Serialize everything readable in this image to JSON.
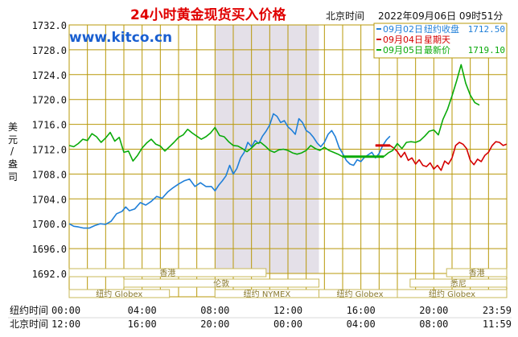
{
  "chart_data": {
    "type": "line",
    "title": "24小时黄金现货买入价格",
    "timezone_label": "北京时间",
    "timestamp": "2022年09月06日 09时51分",
    "watermark": "www.kitco.cn",
    "ylabel_chars": [
      "美",
      "元",
      "/",
      "盎",
      "司"
    ],
    "ylim": [
      1692,
      1732
    ],
    "yticks": [
      "1732.0",
      "1728.0",
      "1724.0",
      "1720.0",
      "1716.0",
      "1712.0",
      "1708.0",
      "1704.0",
      "1700.0",
      "1696.0",
      "1692.0"
    ],
    "xlim": [
      0,
      24
    ],
    "x_rows": [
      {
        "label": "纽约时间",
        "ticks": [
          "00:00",
          "04:00",
          "08:00",
          "12:00",
          "16:00",
          "20:00",
          "23:59"
        ]
      },
      {
        "label": "北京时间",
        "ticks": [
          "12:00",
          "16:00",
          "20:00",
          "00:00",
          "04:00",
          "08:00",
          "11:59"
        ]
      }
    ],
    "legend": [
      {
        "date": "09月02日",
        "tag": "纽约收盘",
        "value": "1712.50",
        "color": "#1f7fd8"
      },
      {
        "date": "09月04日",
        "tag": "星期天",
        "value": "",
        "color": "#d40000"
      },
      {
        "date": "09月05日",
        "tag": "最新价",
        "value": "1719.10",
        "color": "#0aaa0a"
      }
    ],
    "sessions": [
      {
        "label": "香港",
        "row": 0,
        "x_start": 0,
        "x_end": 10.8
      },
      {
        "label": "伦敦",
        "row": 1,
        "x_start": 3.0,
        "x_end": 13.7
      },
      {
        "label": "纽约 NYMEX",
        "row": 2,
        "x_start": 8.0,
        "x_end": 13.7
      },
      {
        "label": "纽约 Globex",
        "row": 2,
        "x_start": 0,
        "x_end": 5.5
      },
      {
        "label": "纽约 Globex",
        "row": 2,
        "x_start": 13.7,
        "x_end": 18.2
      },
      {
        "label": "香港",
        "row": 0,
        "x_start": 20.7,
        "x_end": 24
      },
      {
        "label": "悉尼",
        "row": 1,
        "x_start": 18.7,
        "x_end": 24
      },
      {
        "label": "纽约 Globex",
        "row": 2,
        "x_start": 18.0,
        "x_end": 24
      }
    ],
    "series": [
      {
        "name": "09月02日",
        "color": "#1f7fd8",
        "x": [
          0,
          0.25,
          0.5,
          0.8,
          1.1,
          1.4,
          1.7,
          2.0,
          2.3,
          2.6,
          2.9,
          3.1,
          3.3,
          3.6,
          3.9,
          4.2,
          4.5,
          4.8,
          5.1,
          5.4,
          5.7,
          6.0,
          6.3,
          6.6,
          6.9,
          7.2,
          7.5,
          7.8,
          8.0,
          8.2,
          8.4,
          8.6,
          8.8,
          9.0,
          9.2,
          9.4,
          9.6,
          9.8,
          10.0,
          10.2,
          10.4,
          10.6,
          10.8,
          11.0,
          11.2,
          11.4,
          11.6,
          11.8,
          12.0,
          12.2,
          12.4,
          12.6,
          12.8,
          13.0,
          13.2,
          13.4,
          13.6,
          13.8,
          14.0,
          14.2,
          14.4,
          14.6,
          14.8,
          15.0,
          15.2,
          15.4,
          15.6,
          15.8,
          16.0,
          16.2,
          16.4,
          16.6,
          16.8,
          17.0,
          17.2,
          17.4,
          17.6
        ],
        "y": [
          1700.0,
          1699.6,
          1699.5,
          1699.3,
          1699.3,
          1699.7,
          1700.0,
          1699.9,
          1700.4,
          1701.6,
          1702.0,
          1702.7,
          1702.1,
          1702.4,
          1703.4,
          1703.0,
          1703.6,
          1704.4,
          1704.1,
          1705.1,
          1705.8,
          1706.4,
          1706.9,
          1707.2,
          1706.0,
          1706.6,
          1706.0,
          1706.0,
          1705.3,
          1706.2,
          1706.9,
          1707.7,
          1709.4,
          1708.0,
          1708.9,
          1710.6,
          1711.5,
          1713.1,
          1712.4,
          1713.4,
          1712.9,
          1714.1,
          1714.9,
          1715.9,
          1717.7,
          1717.3,
          1716.3,
          1716.6,
          1715.6,
          1715.1,
          1714.4,
          1716.9,
          1716.3,
          1715.0,
          1714.6,
          1713.9,
          1713.0,
          1712.4,
          1713.1,
          1714.4,
          1715.0,
          1714.0,
          1712.3,
          1711.3,
          1710.2,
          1709.6,
          1709.4,
          1710.3,
          1710.0,
          1710.7,
          1711.1,
          1711.5,
          1710.6,
          1711.3,
          1712.6,
          1713.5,
          1714.1
        ]
      },
      {
        "name": "09月04日",
        "color": "#d40000",
        "x": [
          16.8,
          17.0,
          17.2,
          17.4,
          17.6,
          17.8,
          18.0,
          18.2,
          18.4,
          18.6,
          18.8,
          19.0,
          19.2,
          19.4,
          19.6,
          19.8,
          20.0,
          20.2,
          20.4,
          20.6,
          20.8,
          21.0,
          21.2,
          21.4,
          21.6,
          21.8,
          22.0,
          22.2,
          22.4,
          22.6,
          22.8,
          23.0,
          23.2,
          23.4,
          23.6,
          23.8,
          23.99
        ],
        "y": [
          1712.6,
          1712.6,
          1712.6,
          1712.6,
          1712.6,
          1712.2,
          1711.6,
          1710.7,
          1711.5,
          1710.2,
          1710.6,
          1709.6,
          1710.3,
          1709.4,
          1709.2,
          1709.8,
          1708.8,
          1709.4,
          1708.6,
          1710.1,
          1709.6,
          1710.6,
          1712.6,
          1713.1,
          1712.8,
          1712.1,
          1710.2,
          1709.5,
          1710.4,
          1710.0,
          1711.0,
          1711.5,
          1712.6,
          1713.2,
          1713.1,
          1712.6,
          1712.8
        ]
      },
      {
        "name": "09月05日",
        "color": "#0aaa0a",
        "x": [
          0,
          0.25,
          0.5,
          0.75,
          1.0,
          1.25,
          1.5,
          1.75,
          2.0,
          2.25,
          2.5,
          2.75,
          3.0,
          3.25,
          3.5,
          3.75,
          4.0,
          4.25,
          4.5,
          4.75,
          5.0,
          5.25,
          5.5,
          5.75,
          6.0,
          6.25,
          6.5,
          6.75,
          7.0,
          7.25,
          7.5,
          7.75,
          8.0,
          8.25,
          8.5,
          8.75,
          9.0,
          9.25,
          9.5,
          9.75,
          10.0,
          10.25,
          10.5,
          10.75,
          11.0,
          11.25,
          11.5,
          11.75,
          12.0,
          12.25,
          12.5,
          12.75,
          13.0,
          13.25,
          13.5,
          13.75,
          14.0,
          14.25,
          14.5,
          14.75,
          15.0,
          15.5,
          16.0,
          16.5,
          17.0,
          17.25,
          17.5,
          17.75,
          18.0,
          18.25,
          18.5,
          18.75,
          19.0,
          19.25,
          19.5,
          19.75,
          20.0,
          20.25,
          20.5,
          20.75,
          21.0,
          21.25,
          21.5,
          21.75,
          22.0,
          22.25,
          22.5
        ],
        "y": [
          1712.6,
          1712.4,
          1712.9,
          1713.6,
          1713.4,
          1714.5,
          1714.0,
          1713.1,
          1713.8,
          1714.7,
          1713.3,
          1713.9,
          1711.5,
          1711.7,
          1710.1,
          1711.0,
          1712.2,
          1713.0,
          1713.6,
          1712.8,
          1712.5,
          1711.7,
          1712.4,
          1713.1,
          1713.9,
          1714.3,
          1715.2,
          1714.6,
          1714.1,
          1713.6,
          1714.0,
          1714.6,
          1715.5,
          1714.2,
          1714.0,
          1713.2,
          1712.6,
          1712.5,
          1712.1,
          1711.6,
          1712.2,
          1712.9,
          1713.1,
          1712.5,
          1711.8,
          1711.5,
          1711.9,
          1712.0,
          1711.8,
          1711.4,
          1711.2,
          1711.4,
          1711.8,
          1712.6,
          1712.1,
          1711.8,
          1712.3,
          1711.8,
          1711.5,
          1711.2,
          1710.8,
          1710.8,
          1710.8,
          1710.8,
          1710.8,
          1710.8,
          1711.4,
          1711.8,
          1712.9,
          1712.1,
          1713.1,
          1713.2,
          1713.1,
          1713.4,
          1714.1,
          1714.9,
          1715.1,
          1714.3,
          1716.8,
          1718.4,
          1720.6,
          1723.0,
          1725.6,
          1722.6,
          1720.7,
          1719.5,
          1719.1
        ]
      }
    ]
  },
  "colors": {
    "grid": "#b8980a",
    "session_bar": "#c8b85a",
    "shade": "#e4e0e8",
    "title": "#e00000",
    "watermark": "#1a5fd0"
  }
}
